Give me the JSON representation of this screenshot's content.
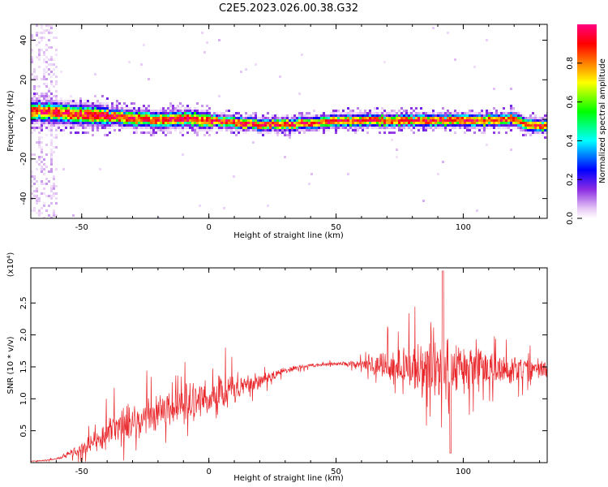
{
  "figure": {
    "title": "C2E5.2023.026.00.38.G32"
  },
  "colors": {
    "snr_line": "#e8262a",
    "axis": "#000000",
    "background": "#ffffff"
  },
  "chart_data": [
    {
      "type": "heatmap",
      "xlabel": "Height of straight line (km)",
      "ylabel": "Frequency (Hz)",
      "xlim": [
        -70,
        133
      ],
      "ylim": [
        -50,
        48
      ],
      "x_ticks": [
        -50,
        0,
        50,
        100
      ],
      "y_ticks": [
        -40,
        -20,
        0,
        20,
        40
      ],
      "colorbar": {
        "label": "Normalized spectral amplitude",
        "range": [
          0.0,
          1.0
        ],
        "ticks": [
          0.0,
          0.2,
          0.4,
          0.6,
          0.8
        ],
        "colormap": [
          "#ffffff",
          "#e6c8f5",
          "#8a2be2",
          "#0000ff",
          "#00ffff",
          "#00ff00",
          "#ffff00",
          "#ff7f00",
          "#ff0000",
          "#ff0080"
        ]
      },
      "ridge_frequency": {
        "x": [
          -70,
          -60,
          -50,
          -40,
          -30,
          -20,
          -10,
          0,
          10,
          20,
          30,
          40,
          50,
          60,
          70,
          80,
          90,
          100,
          110,
          120,
          125,
          133
        ],
        "y": [
          5,
          4,
          3,
          2,
          1,
          0,
          1,
          0,
          -1,
          -2,
          -2,
          -1,
          0,
          0,
          0,
          0,
          0,
          0,
          0,
          1,
          -2,
          -3
        ]
      }
    },
    {
      "type": "line",
      "xlabel": "Height of straight line (km)",
      "ylabel": "SNR (10 * v/v)",
      "y_multiplier": "(x10⁴)",
      "xlim": [
        -70,
        133
      ],
      "ylim": [
        0,
        3.05
      ],
      "x_ticks": [
        -50,
        0,
        50,
        100
      ],
      "y_ticks": [
        0.5,
        1.0,
        1.5,
        2.0,
        2.5
      ],
      "envelope": {
        "x": [
          -70,
          -60,
          -50,
          -40,
          -30,
          -20,
          -10,
          0,
          10,
          20,
          30,
          40,
          50,
          60,
          70,
          80,
          90,
          100,
          110,
          120,
          133
        ],
        "mean": [
          0.02,
          0.05,
          0.22,
          0.45,
          0.62,
          0.82,
          0.95,
          1.02,
          1.15,
          1.28,
          1.45,
          1.52,
          1.55,
          1.55,
          1.52,
          1.48,
          1.42,
          1.45,
          1.48,
          1.45,
          1.45
        ],
        "spread": [
          0.01,
          0.02,
          0.12,
          0.3,
          0.35,
          0.4,
          0.38,
          0.35,
          0.3,
          0.15,
          0.06,
          0.04,
          0.03,
          0.08,
          0.3,
          0.45,
          0.6,
          0.5,
          0.35,
          0.25,
          0.2
        ]
      }
    }
  ]
}
